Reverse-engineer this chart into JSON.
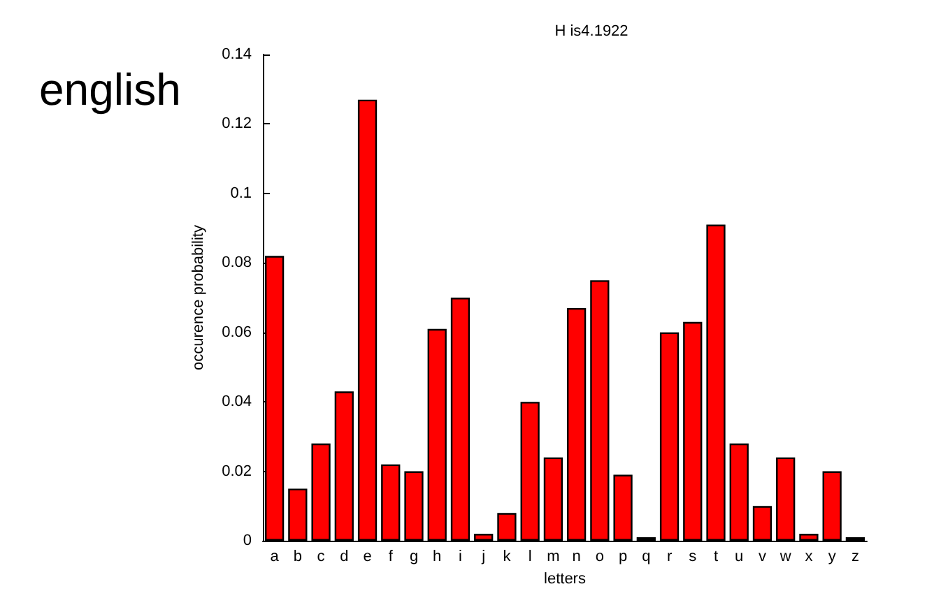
{
  "chart_data": {
    "type": "bar",
    "title": "H is4.1922",
    "xlabel": "letters",
    "ylabel": "occurence probability",
    "annotations": [
      "english"
    ],
    "categories": [
      "a",
      "b",
      "c",
      "d",
      "e",
      "f",
      "g",
      "h",
      "i",
      "j",
      "k",
      "l",
      "m",
      "n",
      "o",
      "p",
      "q",
      "r",
      "s",
      "t",
      "u",
      "v",
      "w",
      "x",
      "y",
      "z"
    ],
    "values": [
      0.082,
      0.015,
      0.028,
      0.043,
      0.127,
      0.022,
      0.02,
      0.061,
      0.07,
      0.002,
      0.008,
      0.04,
      0.024,
      0.067,
      0.075,
      0.019,
      0.001,
      0.06,
      0.063,
      0.091,
      0.028,
      0.01,
      0.024,
      0.002,
      0.02,
      0.001
    ],
    "color": "#ff0000",
    "ylim": [
      0,
      0.14
    ],
    "yticks": [
      0,
      0.02,
      0.04,
      0.06,
      0.08,
      0.1,
      0.12,
      0.14
    ],
    "grid": false
  }
}
